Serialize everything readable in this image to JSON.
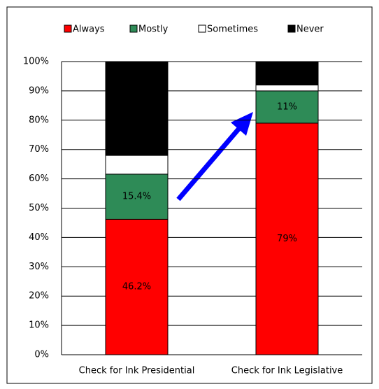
{
  "chart_data": {
    "type": "stacked_bar",
    "categories": [
      "Check for Ink Presidential",
      "Check for Ink Legislative"
    ],
    "series": [
      {
        "name": "Always",
        "color": "#ff0000",
        "values": [
          46.2,
          79
        ],
        "value_labels": [
          "46.2%",
          "79%"
        ]
      },
      {
        "name": "Mostly",
        "color": "#2e8b57",
        "values": [
          15.4,
          11
        ],
        "value_labels": [
          "15.4%",
          "11%"
        ]
      },
      {
        "name": "Sometimes",
        "color": "#ffffff",
        "values": [
          6.4,
          2
        ]
      },
      {
        "name": "Never",
        "color": "#000000",
        "values": [
          32,
          8
        ]
      }
    ],
    "ylim": [
      0,
      100
    ],
    "yticks": [
      {
        "value": 0,
        "label": "0%"
      },
      {
        "value": 10,
        "label": "10%"
      },
      {
        "value": 20,
        "label": "20%"
      },
      {
        "value": 30,
        "label": "30%"
      },
      {
        "value": 40,
        "label": "40%"
      },
      {
        "value": 50,
        "label": "50%"
      },
      {
        "value": 60,
        "label": "60%"
      },
      {
        "value": 70,
        "label": "70%"
      },
      {
        "value": 80,
        "label": "80%"
      },
      {
        "value": 90,
        "label": "90%"
      },
      {
        "value": 100,
        "label": "100%"
      }
    ],
    "grid": true,
    "legend": "top"
  }
}
